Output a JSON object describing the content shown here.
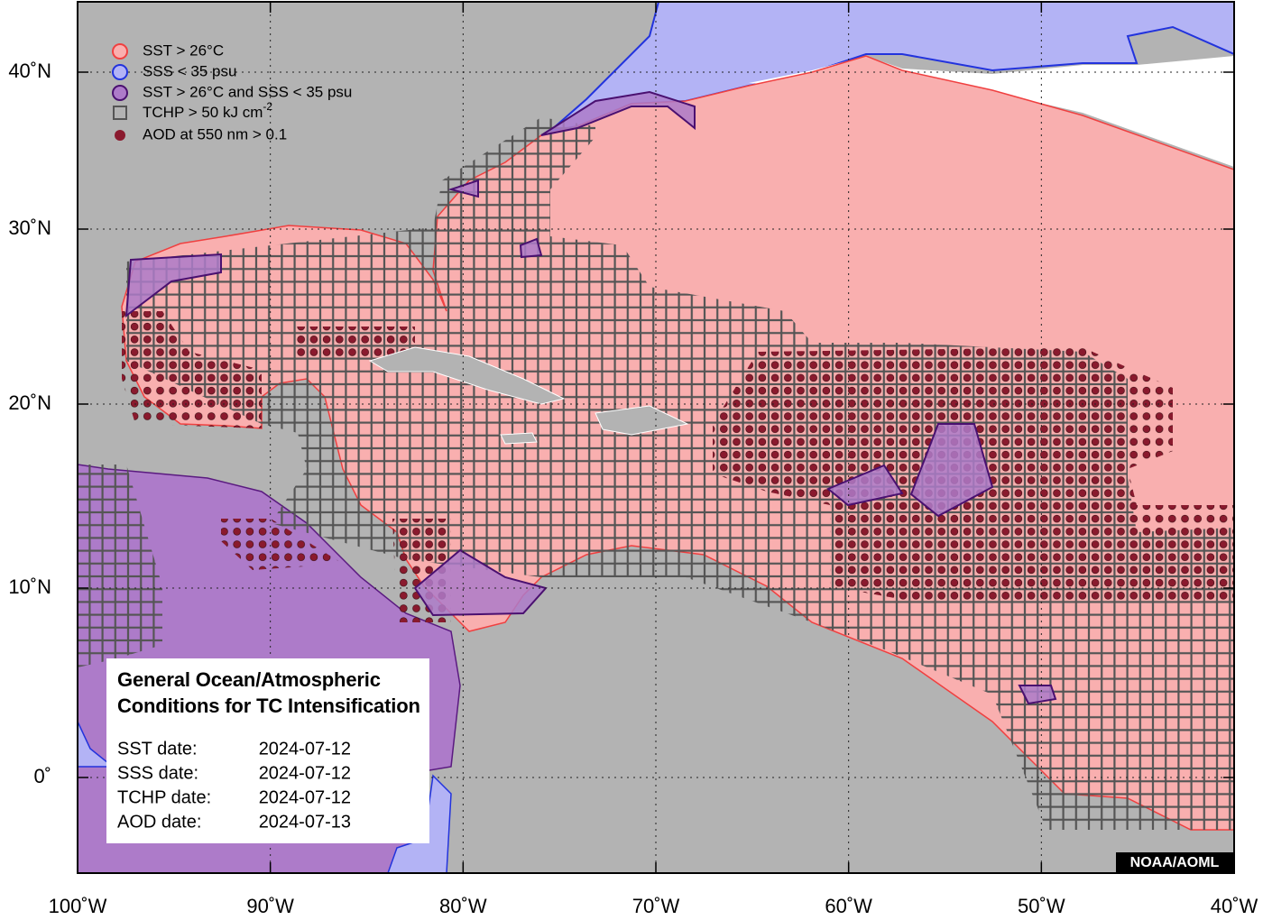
{
  "map": {
    "x_axis_labels": [
      "100˚W",
      "90˚W",
      "80˚W",
      "70˚W",
      "60˚W",
      "50˚W",
      "40˚W"
    ],
    "y_axis_labels": [
      "40˚N",
      "30˚N",
      "20˚N",
      "10˚N",
      "0˚"
    ],
    "legend": [
      {
        "label": "SST > 26°C"
      },
      {
        "label": "SSS < 35 psu"
      },
      {
        "label": "SST > 26°C and SSS < 35 psu"
      },
      {
        "label": "TCHP > 50 kJ cm",
        "superscript": "-2"
      },
      {
        "label": "AOD at 550 nm > 0.1"
      }
    ],
    "info_box": {
      "title": [
        "General Ocean/Atmospheric",
        "Conditions for TC Intensification"
      ],
      "dates": [
        {
          "label": "SST date:",
          "value": "2024-07-12"
        },
        {
          "label": "SSS date:",
          "value": "2024-07-12"
        },
        {
          "label": "TCHP date:",
          "value": "2024-07-12"
        },
        {
          "label": "AOD date:",
          "value": "2024-07-13"
        }
      ]
    },
    "credit": "NOAA/AOML"
  }
}
